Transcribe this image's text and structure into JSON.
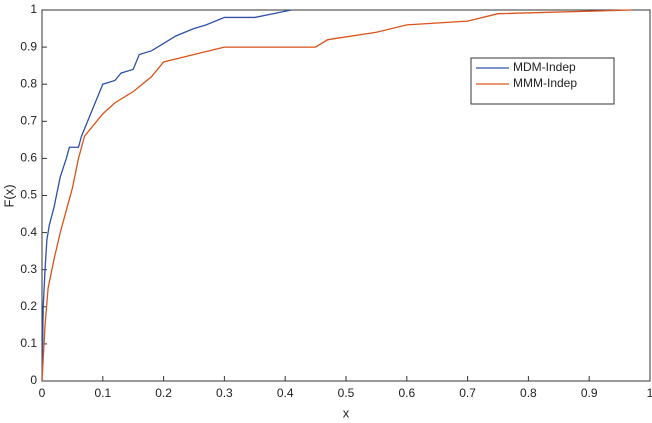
{
  "chart_data": {
    "type": "line",
    "xlabel": "x",
    "ylabel": "F(x)",
    "xlim": [
      0,
      1
    ],
    "ylim": [
      0,
      1
    ],
    "xticks": [
      0,
      0.1,
      0.2,
      0.3,
      0.4,
      0.5,
      0.6,
      0.7,
      0.8,
      0.9,
      1
    ],
    "yticks": [
      0,
      0.1,
      0.2,
      0.3,
      0.4,
      0.5,
      0.6,
      0.7,
      0.8,
      0.9,
      1
    ],
    "grid": false,
    "legend": "upper right",
    "series": [
      {
        "name": "MDM-Indep",
        "color": "#2d50a8",
        "x": [
          0,
          0.002,
          0.005,
          0.008,
          0.012,
          0.02,
          0.03,
          0.04,
          0.045,
          0.06,
          0.065,
          0.08,
          0.09,
          0.1,
          0.12,
          0.13,
          0.15,
          0.16,
          0.18,
          0.2,
          0.22,
          0.25,
          0.27,
          0.3,
          0.35,
          0.38,
          0.41
        ],
        "values": [
          0,
          0.2,
          0.3,
          0.38,
          0.42,
          0.47,
          0.55,
          0.6,
          0.63,
          0.63,
          0.66,
          0.72,
          0.76,
          0.8,
          0.81,
          0.83,
          0.84,
          0.88,
          0.89,
          0.91,
          0.93,
          0.95,
          0.96,
          0.98,
          0.98,
          0.99,
          1
        ]
      },
      {
        "name": "MMM-Indep",
        "color": "#d95319",
        "x": [
          0,
          0.005,
          0.01,
          0.02,
          0.03,
          0.04,
          0.05,
          0.06,
          0.07,
          0.08,
          0.1,
          0.12,
          0.15,
          0.18,
          0.2,
          0.25,
          0.3,
          0.45,
          0.47,
          0.55,
          0.6,
          0.7,
          0.75,
          0.97
        ],
        "values": [
          0,
          0.15,
          0.25,
          0.33,
          0.4,
          0.46,
          0.52,
          0.6,
          0.66,
          0.68,
          0.72,
          0.75,
          0.78,
          0.82,
          0.86,
          0.88,
          0.9,
          0.9,
          0.92,
          0.94,
          0.96,
          0.97,
          0.99,
          1
        ]
      }
    ]
  }
}
